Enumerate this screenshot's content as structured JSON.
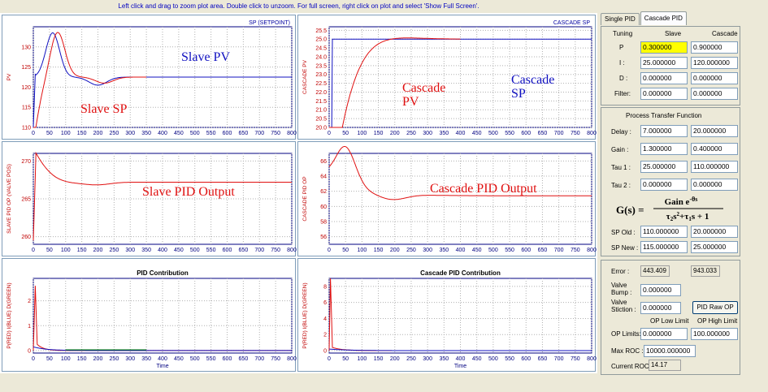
{
  "top_hint": "Left click and drag to zoom plot area. Double click to unzoom. For full screen, right click on plot and select 'Show Full Screen'.",
  "tabs": [
    "Single PID",
    "Cascade PID"
  ],
  "plots": {
    "x_ticks": [
      "0",
      "50",
      "100",
      "150",
      "200",
      "250",
      "300",
      "350",
      "400",
      "450",
      "500",
      "550",
      "600",
      "650",
      "700",
      "750",
      "800"
    ],
    "slave": {
      "ylabel": "PV",
      "legend": "SP (SETPOINT)",
      "yticks": [
        "110",
        "115",
        "120",
        "125",
        "130"
      ],
      "ylim": [
        110,
        135
      ],
      "overlay_pv": "Slave PV",
      "overlay_sp": "Slave SP"
    },
    "cascade": {
      "ylabel": "CASCADE PV",
      "legend": "CASCADE SP",
      "yticks": [
        "20.0",
        "20.5",
        "21.0",
        "21.5",
        "22.0",
        "22.5",
        "23.0",
        "23.5",
        "24.0",
        "24.5",
        "25.0",
        "25.5"
      ],
      "ylim": [
        20,
        25.7
      ],
      "overlay_pv": "Cascade PV",
      "overlay_sp": "Cascade SP"
    },
    "slave_op": {
      "ylabel": "SLAVE PID OP (VALVE POS)",
      "yticks": [
        "260",
        "265",
        "270"
      ],
      "ylim": [
        259,
        271
      ],
      "overlay": "Slave PID Output"
    },
    "cascade_op": {
      "ylabel": "CASCADE PID OP",
      "yticks": [
        "56",
        "58",
        "60",
        "62",
        "64",
        "66"
      ],
      "ylim": [
        55,
        67
      ],
      "overlay": "Cascade PID Output"
    },
    "pid_contrib": {
      "title": "PID Contribution",
      "ylabel": "P(RED)  I(BLUE)  D(GREEN)",
      "xlabel": "Time",
      "yticks": [
        "0",
        "1",
        "2"
      ],
      "ylim": [
        -0.1,
        2.9
      ]
    },
    "cascade_contrib": {
      "title": "Cascade PID Contribution",
      "ylabel": "P(RED)  I(BLUE)  D(GREEN)",
      "xlabel": "Time",
      "yticks": [
        "0",
        "2",
        "4",
        "6",
        "8"
      ],
      "ylim": [
        -0.3,
        9
      ]
    }
  },
  "tuning": {
    "header_label": "Tuning",
    "col_slave": "Slave",
    "col_cascade": "Cascade",
    "rows": [
      {
        "label": "P",
        "slave": "0.300000",
        "cascade": "0.900000"
      },
      {
        "label": "I :",
        "slave": "25.000000",
        "cascade": "120.000000"
      },
      {
        "label": "D :",
        "slave": "0.000000",
        "cascade": "0.000000"
      },
      {
        "label": "Filter:",
        "slave": "0.000000",
        "cascade": "0.000000"
      }
    ]
  },
  "process": {
    "title": "Process Transfer Function",
    "rows": [
      {
        "label": "Delay :",
        "slave": "7.000000",
        "cascade": "20.000000"
      },
      {
        "label": "Gain :",
        "slave": "1.300000",
        "cascade": "0.400000"
      },
      {
        "label": "Tau 1 :",
        "slave": "25.000000",
        "cascade": "110.000000"
      },
      {
        "label": "Tau 2 :",
        "slave": "0.000000",
        "cascade": "0.000000"
      }
    ],
    "sp_rows": [
      {
        "label": "SP Old :",
        "slave": "110.000000",
        "cascade": "20.000000"
      },
      {
        "label": "SP New :",
        "slave": "115.000000",
        "cascade": "25.000000"
      }
    ]
  },
  "status": {
    "error_label": "Error :",
    "error_slave": "443.409",
    "error_cascade": "943.033",
    "valve_bump_label": "Valve Bump :",
    "valve_bump": "0.000000",
    "valve_stiction_label": "Valve Stiction :",
    "valve_stiction": "0.000000",
    "pid_raw_op": "PID Raw OP",
    "op_low_label": "OP Low Limit",
    "op_high_label": "OP High Limit",
    "op_limits_label": "OP Limits:",
    "op_low": "0.000000",
    "op_high": "100.000000",
    "max_roc_label": "Max ROC :",
    "max_roc": "10000.000000",
    "current_roc_label": "Current ROC :",
    "current_roc": "14.17"
  },
  "colors": {
    "pv": "#e01010",
    "sp": "#1010c0",
    "grid": "#b0b0b0",
    "highlight": "#ffff00"
  }
}
